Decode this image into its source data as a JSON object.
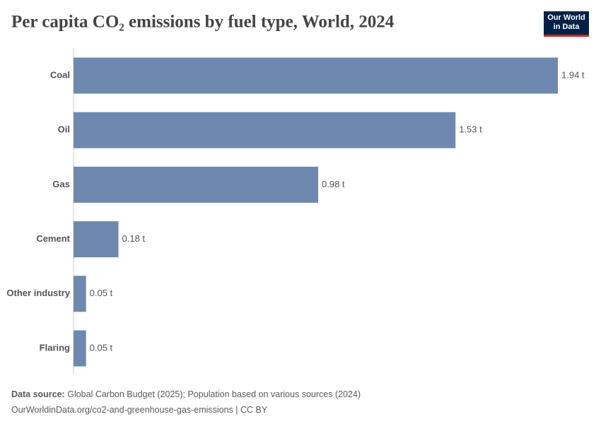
{
  "chart_data": {
    "type": "bar",
    "orientation": "horizontal",
    "title": "Per capita CO₂ emissions by fuel type, World, 2024",
    "categories": [
      "Coal",
      "Oil",
      "Gas",
      "Cement",
      "Other industry",
      "Flaring"
    ],
    "values": [
      1.94,
      1.53,
      0.98,
      0.18,
      0.05,
      0.05
    ],
    "value_labels": [
      "1.94 t",
      "1.53 t",
      "0.98 t",
      "0.18 t",
      "0.05 t",
      "0.05 t"
    ],
    "color": "#6f88b0"
  },
  "logo": "Our World in Data",
  "footer": {
    "source_label": "Data source:",
    "source": "Global Carbon Budget (2025); Population based on various sources (2024)",
    "link": "OurWorldinData.org/co2-and-greenhouse-gas-emissions | CC BY"
  }
}
